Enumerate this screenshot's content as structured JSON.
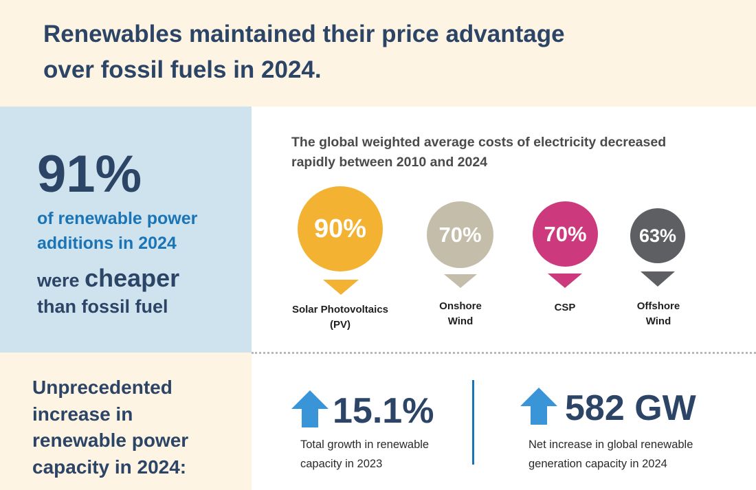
{
  "title": {
    "line1": "Renewables maintained their price advantage",
    "line2": "over fossil fuels in 2024."
  },
  "highlight": {
    "percent": "91%",
    "line1": "of renewable power",
    "line2": "additions in 2024",
    "were": "were",
    "cheaper": "cheaper",
    "than": "than fossil fuel"
  },
  "costs": {
    "heading_line1": "The global weighted average costs of electricity decreased",
    "heading_line2": "rapidly between 2010 and 2024",
    "items": [
      {
        "value": "90%",
        "label_line1": "Solar Photovoltaics",
        "label_line2": "(PV)",
        "color": "#f4b233"
      },
      {
        "value": "70%",
        "label_line1": "Onshore",
        "label_line2": "Wind",
        "color": "#c3bdaa"
      },
      {
        "value": "70%",
        "label_line1": "CSP",
        "label_line2": "",
        "color": "#cc3a7d"
      },
      {
        "value": "63%",
        "label_line1": "Offshore",
        "label_line2": "Wind",
        "color": "#5d5f62"
      }
    ]
  },
  "capacity": {
    "heading_line1": "Unprecedented",
    "heading_line2": "increase in",
    "heading_line3": "renewable power",
    "heading_line4": "capacity in 2024:",
    "stats": [
      {
        "value": "15.1%",
        "desc_line1": "Total growth in renewable",
        "desc_line2": "capacity in 2023",
        "icon": "up-arrow-icon"
      },
      {
        "value": "582 GW",
        "desc_line1": "Net increase in global renewable",
        "desc_line2": "generation capacity in 2024",
        "icon": "up-arrow-icon"
      }
    ]
  },
  "colors": {
    "navy": "#2c4466",
    "blue": "#1a74b5",
    "arrow_blue": "#3a95d8",
    "header_bg": "#fdf4e3",
    "panel_bg": "#cfe3ee"
  }
}
